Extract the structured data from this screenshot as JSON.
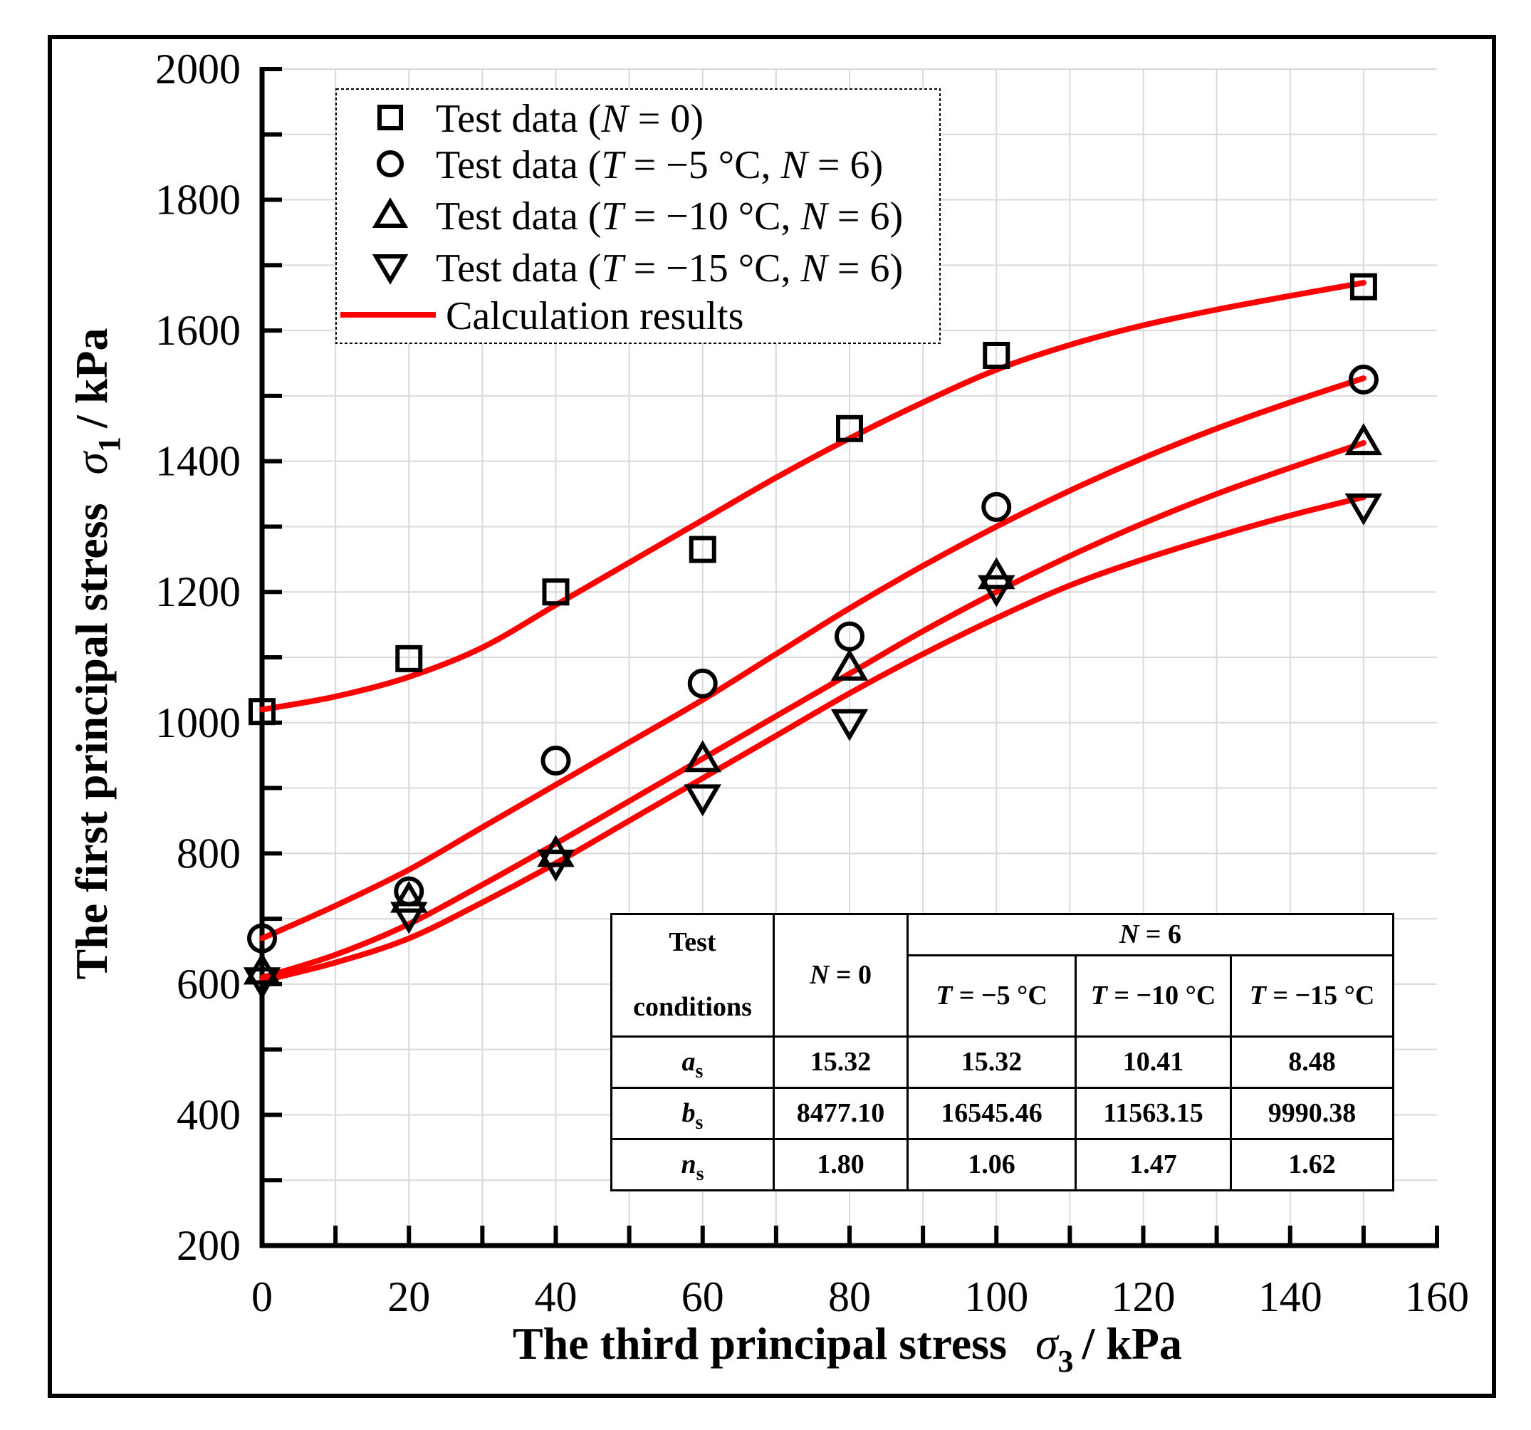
{
  "chart_data": {
    "type": "scatter",
    "xlabel": "The third principal stress  σ₃ / kPa",
    "ylabel": "The first principal stress  σ₁ / kPa",
    "xlabel_main": "The third principal stress",
    "xlabel_symbol": "σ",
    "xlabel_subscript": "3",
    "xlabel_unit": "/ kPa",
    "ylabel_main": "The first principal stress",
    "ylabel_symbol": "σ",
    "ylabel_subscript": "1",
    "ylabel_unit": "/ kPa",
    "xlim": [
      0,
      160
    ],
    "ylim": [
      200,
      2000
    ],
    "xticks": [
      0,
      20,
      40,
      60,
      80,
      100,
      120,
      140,
      160
    ],
    "yticks": [
      200,
      400,
      600,
      800,
      1000,
      1200,
      1400,
      1600,
      1800,
      2000
    ],
    "xtick_labels": [
      "0",
      "20",
      "40",
      "60",
      "80",
      "100",
      "120",
      "140",
      "160"
    ],
    "ytick_labels": [
      "200",
      "400",
      "600",
      "800",
      "1000",
      "1200",
      "1400",
      "1600",
      "1800",
      "2000"
    ],
    "grid": true,
    "legend_position": "top-left",
    "line_color": "#ff0000",
    "series": [
      {
        "name": "Test data (N = 0)",
        "legend_prefix": "Test data (",
        "legend_cond": "",
        "legend_N": "N",
        "legend_N_val": " = 0)",
        "marker": "square",
        "x": [
          0,
          20,
          40,
          60,
          80,
          100,
          150
        ],
        "values": [
          1017,
          1098,
          1200,
          1265,
          1450,
          1562,
          1667
        ]
      },
      {
        "name": "Test data (T = −5 °C, N = 6)",
        "legend_prefix": "Test data (",
        "legend_cond": " = −5 °C, ",
        "legend_N": "N",
        "legend_N_val": " = 6)",
        "marker": "circle",
        "x": [
          0,
          20,
          40,
          60,
          80,
          100,
          150
        ],
        "values": [
          670,
          742,
          942,
          1060,
          1132,
          1330,
          1525
        ]
      },
      {
        "name": "Test data (T = −10 °C, N = 6)",
        "legend_prefix": "Test data (",
        "legend_cond": " = −10 °C, ",
        "legend_N": "N",
        "legend_N_val": " = 6)",
        "marker": "triangle-up",
        "x": [
          0,
          20,
          40,
          60,
          80,
          100,
          150
        ],
        "values": [
          620,
          730,
          800,
          945,
          1085,
          1225,
          1430
        ]
      },
      {
        "name": "Test data (T = −15 °C, N = 6)",
        "legend_prefix": "Test data (",
        "legend_cond": " = −15 °C, ",
        "legend_N": "N",
        "legend_N_val": " = 6)",
        "marker": "triangle-down",
        "x": [
          0,
          20,
          40,
          60,
          80,
          100,
          150
        ],
        "values": [
          605,
          705,
          785,
          885,
          1000,
          1205,
          1330
        ]
      }
    ],
    "calc_legend": "Calculation results",
    "calculation_curves": [
      {
        "name": "N = 0",
        "x": [
          0,
          10,
          20,
          30,
          40,
          50,
          60,
          70,
          80,
          90,
          100,
          110,
          120,
          130,
          140,
          150
        ],
        "values": [
          1020,
          1040,
          1070,
          1115,
          1180,
          1245,
          1310,
          1375,
          1435,
          1490,
          1540,
          1578,
          1608,
          1632,
          1653,
          1673
        ]
      },
      {
        "name": "T = −5 °C, N = 6",
        "x": [
          0,
          10,
          20,
          30,
          40,
          50,
          60,
          70,
          80,
          90,
          100,
          110,
          120,
          130,
          140,
          150
        ],
        "values": [
          670,
          720,
          775,
          840,
          905,
          970,
          1035,
          1105,
          1175,
          1240,
          1300,
          1355,
          1405,
          1450,
          1490,
          1527
        ]
      },
      {
        "name": "T = −10 °C, N = 6",
        "x": [
          0,
          10,
          20,
          30,
          40,
          50,
          60,
          70,
          80,
          90,
          100,
          110,
          120,
          130,
          140,
          150
        ],
        "values": [
          610,
          645,
          692,
          752,
          815,
          880,
          945,
          1010,
          1075,
          1140,
          1200,
          1255,
          1305,
          1350,
          1390,
          1428
        ]
      },
      {
        "name": "T = −15 °C, N = 6",
        "x": [
          0,
          10,
          20,
          30,
          40,
          50,
          60,
          70,
          80,
          90,
          100,
          110,
          120,
          130,
          140,
          150
        ],
        "values": [
          605,
          633,
          670,
          725,
          785,
          850,
          915,
          980,
          1045,
          1105,
          1160,
          1210,
          1250,
          1285,
          1317,
          1345
        ]
      }
    ]
  },
  "table": {
    "header_test": "Test",
    "header_conditions": "conditions",
    "col_n0": {
      "var": "N",
      "rest": " = 0"
    },
    "col_n6": {
      "var": "N",
      "rest": " = 6"
    },
    "sub_cols": [
      {
        "var": "T",
        "rest": " = −5 °C"
      },
      {
        "var": "T",
        "rest": " = −10 °C"
      },
      {
        "var": "T",
        "rest": " = −15 °C"
      }
    ],
    "rows": [
      {
        "sym": "a",
        "sub": "s",
        "cells": [
          "15.32",
          "15.32",
          "10.41",
          "8.48"
        ]
      },
      {
        "sym": "b",
        "sub": "s",
        "cells": [
          "8477.10",
          "16545.46",
          "11563.15",
          "9990.38"
        ]
      },
      {
        "sym": "n",
        "sub": "s",
        "cells": [
          "1.80",
          "1.06",
          "1.47",
          "1.62"
        ]
      }
    ]
  }
}
